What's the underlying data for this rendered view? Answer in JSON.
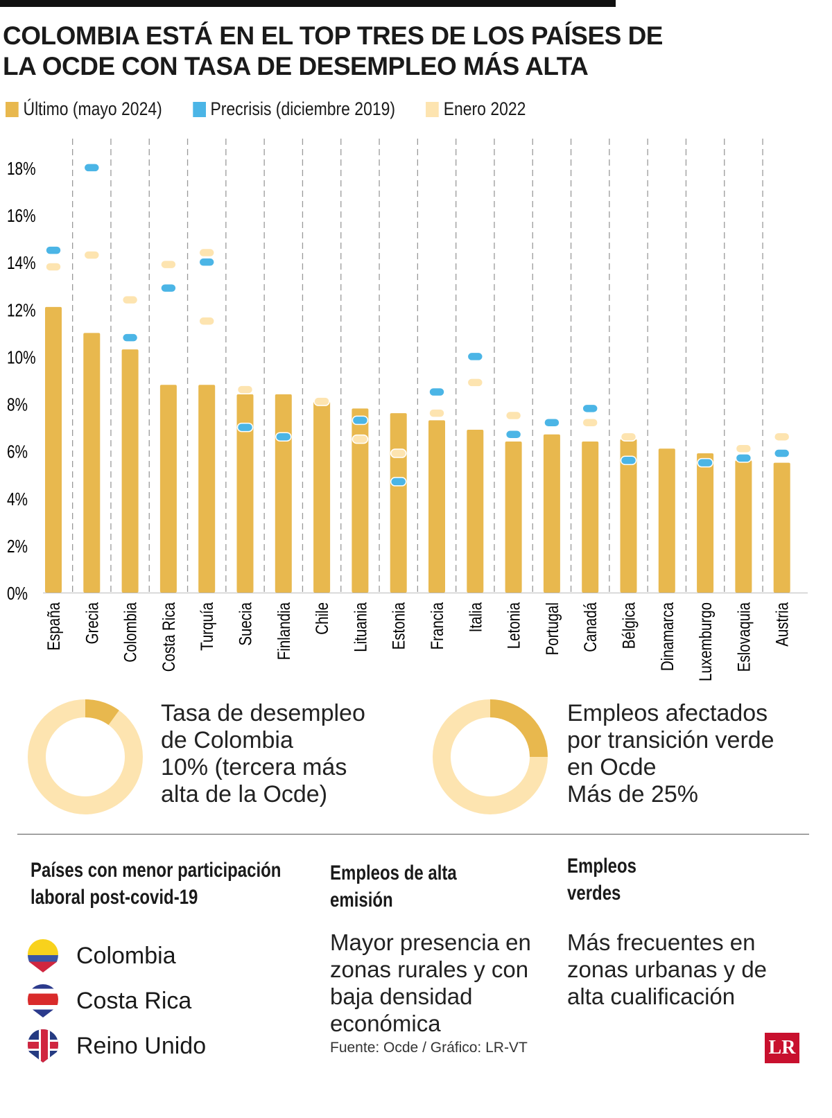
{
  "title": "COLOMBIA ESTÁ EN EL TOP TRES DE LOS PAÍSES DE LA OCDE CON TASA DE DESEMPLEO MÁS ALTA",
  "colors": {
    "ultimo": "#E8B84E",
    "precrisis": "#4BB5E6",
    "enero": "#FDE4B0"
  },
  "chart_data": {
    "type": "bar",
    "categories": [
      "España",
      "Grecia",
      "Colombia",
      "Costa Rica",
      "Turquía",
      "Suecia",
      "Finlandia",
      "Chile",
      "Lituania",
      "Estonia",
      "Francia",
      "Italia",
      "Letonia",
      "Portugal",
      "Canadá",
      "Bélgica",
      "Dinamarca",
      "Luxemburgo",
      "Eslovaquia",
      "Austria"
    ],
    "series": [
      {
        "name": "Último (mayo 2024)",
        "mark": "bar",
        "values": [
          12.1,
          11.0,
          10.3,
          8.8,
          8.8,
          8.4,
          8.4,
          8.1,
          7.8,
          7.6,
          7.3,
          6.9,
          6.4,
          6.7,
          6.4,
          6.5,
          6.1,
          5.9,
          5.6,
          5.5
        ]
      },
      {
        "name": "Precrisis (diciembre 2019)",
        "mark": "dash",
        "values": [
          14.5,
          18.0,
          10.8,
          12.9,
          14.0,
          7.0,
          6.6,
          null,
          7.3,
          4.7,
          8.5,
          10.0,
          6.7,
          7.2,
          7.8,
          5.6,
          null,
          5.5,
          5.7,
          5.9
        ]
      },
      {
        "name": "Enero 2022",
        "mark": "dash",
        "values": [
          13.8,
          14.3,
          12.4,
          13.9,
          [
            14.4,
            11.5
          ],
          8.6,
          null,
          8.1,
          6.5,
          5.9,
          7.6,
          8.9,
          7.5,
          null,
          7.2,
          6.6,
          null,
          null,
          6.1,
          6.6
        ]
      }
    ],
    "yticks": [
      "0%",
      "2%",
      "4%",
      "6%",
      "8%",
      "10%",
      "12%",
      "14%",
      "16%",
      "18%"
    ],
    "ylim": [
      0,
      18.5
    ]
  },
  "donuts": [
    {
      "title": "Tasa de desempleo de Colombia",
      "value_text": "10% (tercera más alta de la Ocde)",
      "fraction": 0.1
    },
    {
      "title": "Empleos afectados por transición verde en Ocde",
      "value_text": "Más de 25%",
      "fraction": 0.25
    }
  ],
  "sections": {
    "paises": {
      "heading": "Países con menor participación laboral post-covid-19",
      "items": [
        "Colombia",
        "Costa Rica",
        "Reino Unido"
      ]
    },
    "alta_emision": {
      "heading": "Empleos de alta emisión",
      "text": "Mayor presencia en zonas rurales y con baja densidad económica"
    },
    "verdes": {
      "heading": "Empleos verdes",
      "text": "Más frecuentes en zonas urbanas y de alta cualificación"
    }
  },
  "source": "Fuente: Ocde / Gráfico: LR-VT",
  "logo": "LR"
}
